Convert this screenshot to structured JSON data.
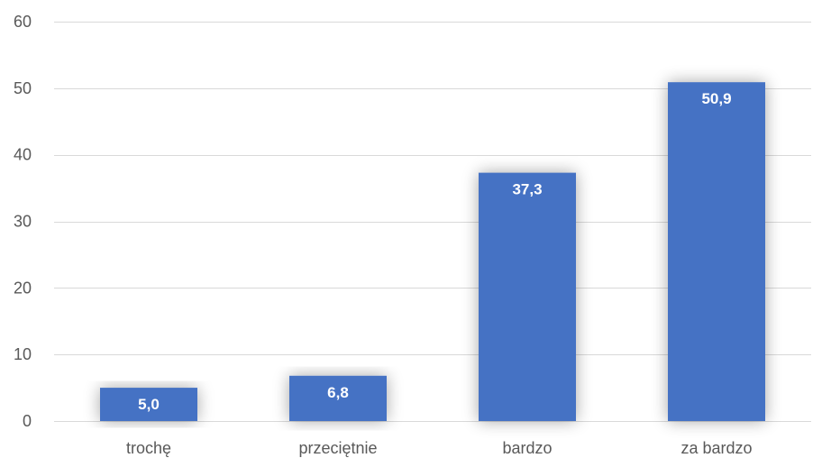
{
  "chart_data": {
    "type": "bar",
    "categories": [
      "trochę",
      "przeciętnie",
      "bardzo",
      "za bardzo"
    ],
    "values": [
      5.0,
      6.8,
      37.3,
      50.9
    ],
    "value_labels": [
      "5,0",
      "6,8",
      "37,3",
      "50,9"
    ],
    "title": "",
    "xlabel": "",
    "ylabel": "",
    "ylim": [
      0,
      60
    ],
    "yticks": [
      0,
      10,
      20,
      30,
      40,
      50,
      60
    ],
    "ytick_labels": [
      "0",
      "10",
      "20",
      "30",
      "40",
      "50",
      "60"
    ],
    "grid": true,
    "legend": "none",
    "bar_color": "#4472c4",
    "grid_color": "#d9d9d9",
    "label_color": "#595959"
  }
}
